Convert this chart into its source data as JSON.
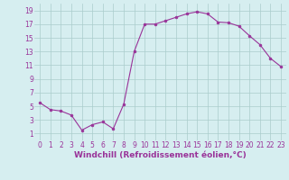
{
  "x": [
    0,
    1,
    2,
    3,
    4,
    5,
    6,
    7,
    8,
    9,
    10,
    11,
    12,
    13,
    14,
    15,
    16,
    17,
    18,
    19,
    20,
    21,
    22,
    23
  ],
  "y": [
    5.5,
    4.5,
    4.3,
    3.7,
    1.5,
    2.3,
    2.7,
    1.7,
    5.3,
    13.0,
    17.0,
    17.0,
    17.5,
    18.0,
    18.5,
    18.8,
    18.5,
    17.3,
    17.2,
    16.7,
    15.3,
    14.0,
    12.0,
    10.8
  ],
  "line_color": "#993399",
  "marker_color": "#993399",
  "bg_color": "#d6eef0",
  "grid_color": "#aacccc",
  "xlabel": "Windchill (Refroidissement éolien,°C)",
  "xlabel_color": "#993399",
  "xlabel_fontsize": 6.5,
  "tick_color": "#993399",
  "tick_fontsize": 5.5,
  "ylim": [
    0,
    20
  ],
  "xlim": [
    -0.5,
    23.5
  ],
  "yticks": [
    1,
    3,
    5,
    7,
    9,
    11,
    13,
    15,
    17,
    19
  ],
  "xticks": [
    0,
    1,
    2,
    3,
    4,
    5,
    6,
    7,
    8,
    9,
    10,
    11,
    12,
    13,
    14,
    15,
    16,
    17,
    18,
    19,
    20,
    21,
    22,
    23
  ]
}
